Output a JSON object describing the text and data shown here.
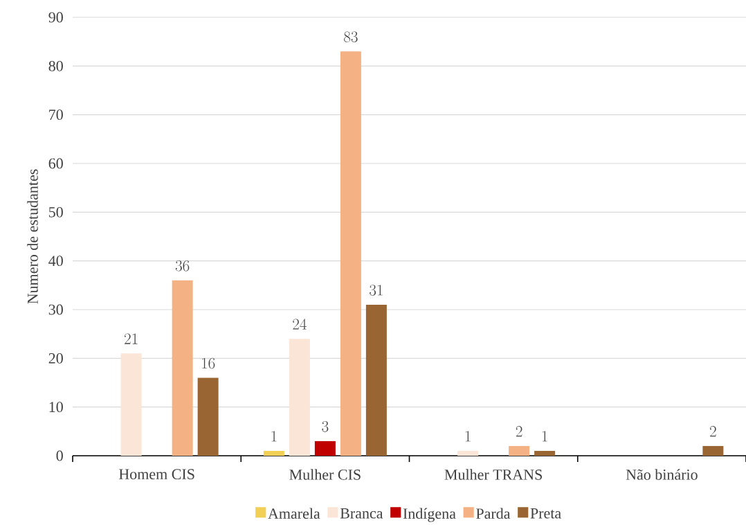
{
  "chart_data": {
    "type": "bar",
    "ylabel": "Numero de estudantes",
    "categories": [
      "Homem CIS",
      "Mulher CIS",
      "Mulher TRANS",
      "Não binário"
    ],
    "series": [
      {
        "name": "Amarela",
        "color": "#f2cf55",
        "values": [
          null,
          1,
          null,
          null
        ]
      },
      {
        "name": "Branca",
        "color": "#fbe5d6",
        "values": [
          21,
          24,
          1,
          null
        ]
      },
      {
        "name": "Indígena",
        "color": "#c00000",
        "values": [
          null,
          3,
          null,
          null
        ]
      },
      {
        "name": "Parda",
        "color": "#f4b183",
        "values": [
          36,
          83,
          2,
          null
        ]
      },
      {
        "name": "Preta",
        "color": "#996633",
        "values": [
          16,
          31,
          1,
          2
        ]
      }
    ],
    "ylim": [
      0,
      90
    ],
    "yticks": [
      0,
      10,
      20,
      30,
      40,
      50,
      60,
      70,
      80,
      90
    ],
    "grid": "y",
    "legend": "bottom",
    "data_labels": true
  }
}
